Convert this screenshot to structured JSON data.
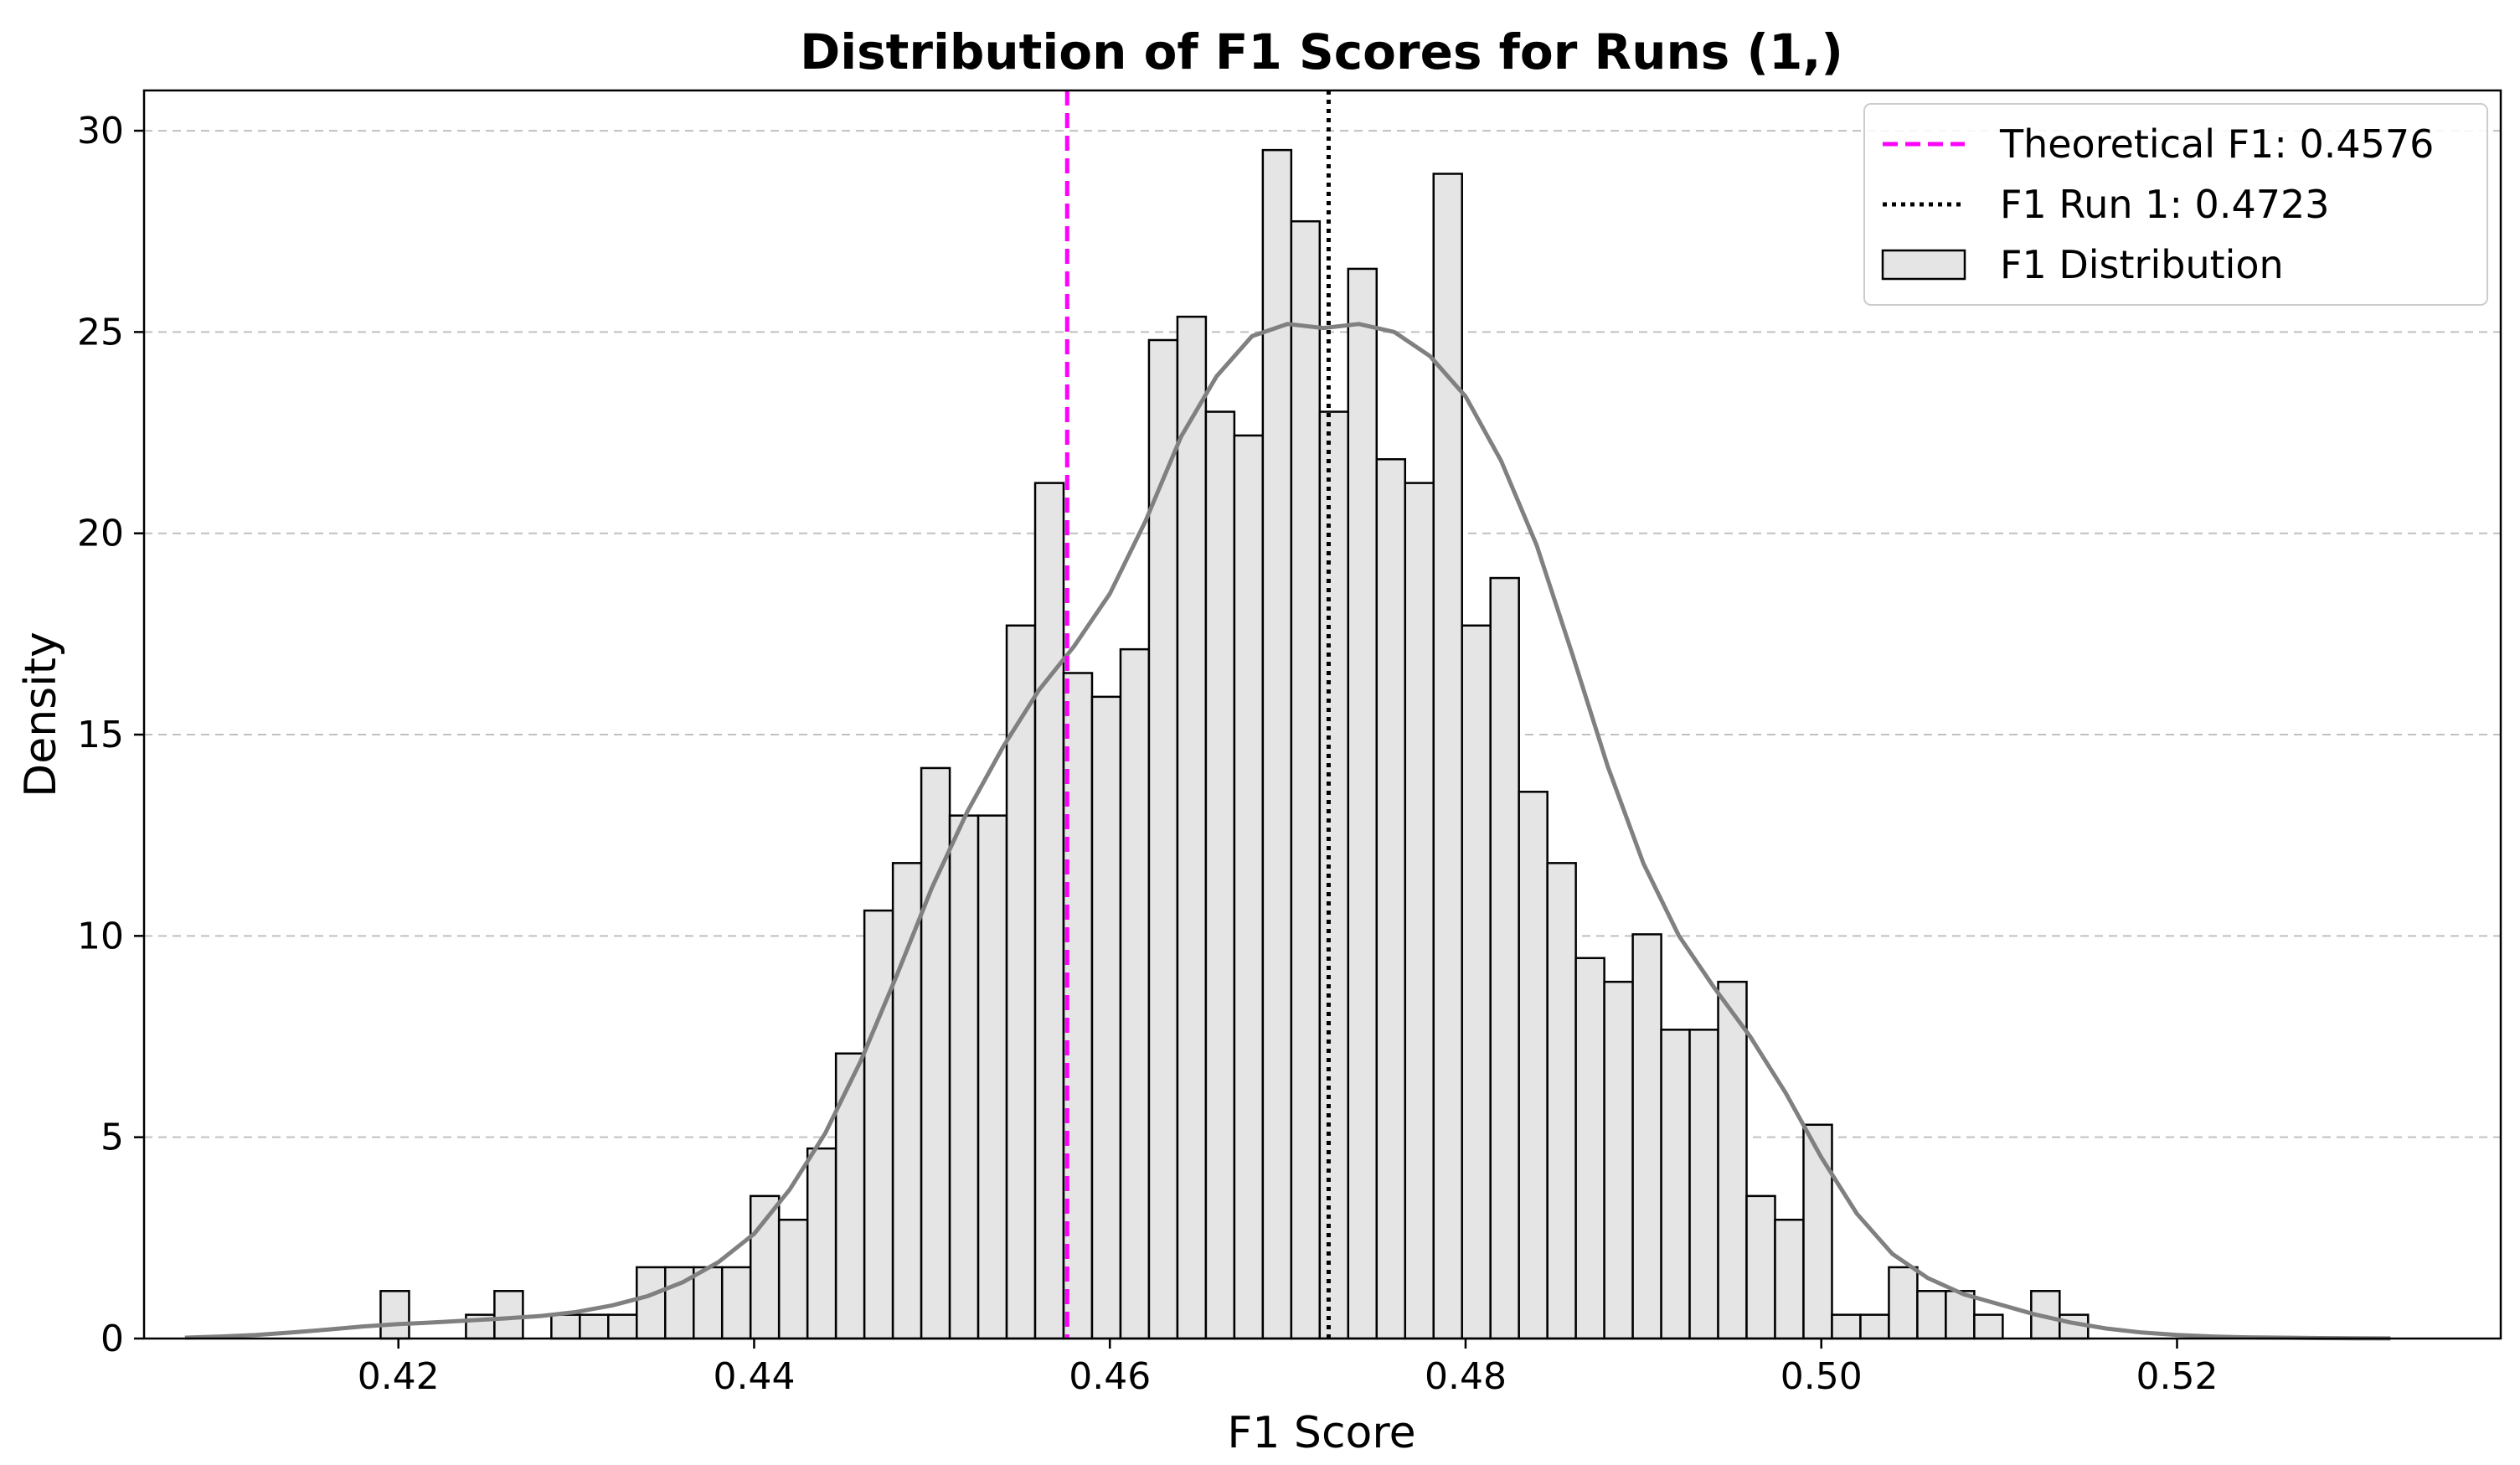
{
  "chart_data": {
    "type": "bar",
    "title": "Distribution of F1 Scores for Runs (1,)",
    "xlabel": "F1 Score",
    "ylabel": "Density",
    "xlim": [
      0.4057,
      0.5382
    ],
    "ylim": [
      0,
      31
    ],
    "xticks": [
      0.42,
      0.44,
      0.46,
      0.48,
      0.5,
      0.52
    ],
    "xtick_labels": [
      "0.42",
      "0.44",
      "0.46",
      "0.48",
      "0.50",
      "0.52"
    ],
    "yticks": [
      0,
      5,
      10,
      15,
      20,
      25,
      30
    ],
    "ytick_labels": [
      "0",
      "5",
      "10",
      "15",
      "20",
      "25",
      "30"
    ],
    "grid": "y-dashed",
    "legend_position": "top-right",
    "bin_start": 0.419,
    "bin_width": 0.0016,
    "values": [
      1.18,
      0,
      0,
      0.59,
      1.18,
      0,
      0.59,
      0.59,
      0.59,
      1.77,
      1.77,
      1.77,
      1.77,
      3.54,
      2.95,
      4.72,
      7.08,
      10.63,
      11.81,
      14.17,
      12.99,
      12.99,
      17.71,
      21.25,
      16.53,
      15.94,
      17.12,
      24.8,
      25.38,
      23.02,
      22.43,
      29.52,
      27.75,
      23.02,
      26.57,
      21.84,
      21.25,
      28.93,
      17.71,
      18.89,
      13.58,
      11.81,
      9.45,
      8.86,
      10.04,
      7.67,
      7.67,
      8.86,
      3.54,
      2.95,
      5.31,
      0.59,
      0.59,
      1.77,
      1.18,
      1.18,
      0.59,
      0,
      1.18,
      0.59
    ],
    "kde_curve": {
      "x": [
        0.408,
        0.41,
        0.412,
        0.414,
        0.416,
        0.418,
        0.42,
        0.422,
        0.424,
        0.426,
        0.428,
        0.43,
        0.432,
        0.434,
        0.436,
        0.438,
        0.44,
        0.442,
        0.444,
        0.446,
        0.448,
        0.45,
        0.452,
        0.454,
        0.456,
        0.458,
        0.46,
        0.462,
        0.464,
        0.466,
        0.468,
        0.47,
        0.472,
        0.474,
        0.476,
        0.478,
        0.48,
        0.482,
        0.484,
        0.486,
        0.488,
        0.49,
        0.492,
        0.494,
        0.496,
        0.498,
        0.5,
        0.502,
        0.504,
        0.506,
        0.508,
        0.51,
        0.512,
        0.514,
        0.516,
        0.518,
        0.52,
        0.522,
        0.524,
        0.526,
        0.528,
        0.53,
        0.532
      ],
      "y": [
        0.02,
        0.05,
        0.09,
        0.15,
        0.22,
        0.3,
        0.36,
        0.4,
        0.45,
        0.5,
        0.56,
        0.66,
        0.82,
        1.05,
        1.4,
        1.9,
        2.6,
        3.7,
        5.1,
        6.9,
        9.0,
        11.2,
        13.1,
        14.7,
        16.1,
        17.2,
        18.5,
        20.3,
        22.4,
        23.9,
        24.9,
        25.2,
        25.1,
        25.2,
        25.0,
        24.4,
        23.4,
        21.8,
        19.7,
        17.0,
        14.2,
        11.8,
        10.0,
        8.7,
        7.5,
        6.1,
        4.5,
        3.1,
        2.1,
        1.5,
        1.1,
        0.85,
        0.6,
        0.4,
        0.25,
        0.15,
        0.09,
        0.05,
        0.03,
        0.02,
        0.01,
        0.005,
        0.002
      ]
    },
    "vlines": [
      {
        "name": "Theoretical F1: 0.4576",
        "x": 0.4576,
        "color": "#ff00ff",
        "style": "dashed"
      },
      {
        "name": "F1 Run 1: 0.4723",
        "x": 0.4723,
        "color": "#000000",
        "style": "dotted"
      }
    ],
    "legend": [
      {
        "label": "Theoretical F1: 0.4576",
        "kind": "dashed",
        "color": "#ff00ff"
      },
      {
        "label": "F1 Run 1: 0.4723",
        "kind": "dotted",
        "color": "#000000"
      },
      {
        "label": "F1 Distribution",
        "kind": "patch",
        "color": "#e5e5e5"
      }
    ],
    "colors": {
      "bar_fill": "#e5e5e5",
      "bar_edge": "#000000",
      "kde": "#808080",
      "grid": "#c0c0c0"
    }
  }
}
